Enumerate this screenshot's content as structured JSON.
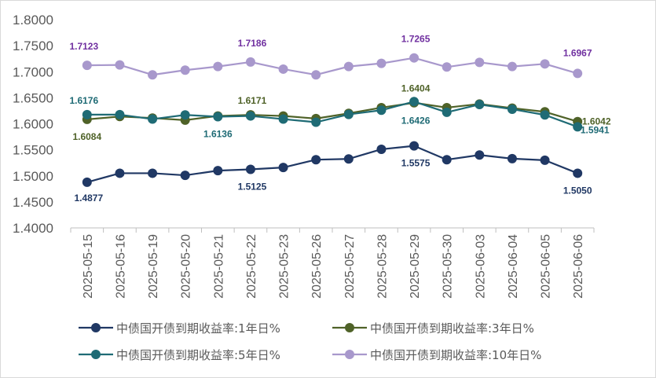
{
  "chart_data": {
    "type": "line",
    "categories": [
      "2025-05-15",
      "2025-05-16",
      "2025-05-19",
      "2025-05-20",
      "2025-05-21",
      "2025-05-22",
      "2025-05-23",
      "2025-05-26",
      "2025-05-27",
      "2025-05-28",
      "2025-05-29",
      "2025-05-30",
      "2025-06-03",
      "2025-06-04",
      "2025-06-05",
      "2025-06-06"
    ],
    "ylim": [
      1.4,
      1.8
    ],
    "yticks": [
      "1.4000",
      "1.4500",
      "1.5000",
      "1.5500",
      "1.6000",
      "1.6500",
      "1.7000",
      "1.7500",
      "1.8000"
    ],
    "grid": false,
    "legend_position": "bottom",
    "series": [
      {
        "name": "中债国开债到期收益率:1年日%",
        "color": "#203864",
        "values": [
          1.4877,
          1.505,
          1.505,
          1.501,
          1.51,
          1.5125,
          1.516,
          1.531,
          1.5325,
          1.551,
          1.5575,
          1.531,
          1.54,
          1.533,
          1.53,
          1.505
        ],
        "labels": [
          {
            "index": 0,
            "text": "1.4877"
          },
          {
            "index": 5,
            "text": "1.5125"
          },
          {
            "index": 10,
            "text": "1.5575"
          },
          {
            "index": 15,
            "text": "1.5050"
          }
        ]
      },
      {
        "name": "中债国开债到期收益率:3年日%",
        "color": "#4F6228",
        "values": [
          1.6084,
          1.614,
          1.611,
          1.607,
          1.615,
          1.6171,
          1.615,
          1.61,
          1.62,
          1.631,
          1.6404,
          1.631,
          1.638,
          1.63,
          1.623,
          1.6042
        ],
        "labels": [
          {
            "index": 0,
            "text": "1.6084"
          },
          {
            "index": 5,
            "text": "1.6171"
          },
          {
            "index": 10,
            "text": "1.6404"
          },
          {
            "index": 15,
            "text": "1.6042"
          }
        ]
      },
      {
        "name": "中债国开债到期收益率:5年日%",
        "color": "#1F6B75",
        "values": [
          1.6176,
          1.6175,
          1.609,
          1.617,
          1.6136,
          1.615,
          1.609,
          1.603,
          1.618,
          1.626,
          1.6426,
          1.622,
          1.637,
          1.628,
          1.617,
          1.5941
        ],
        "labels": [
          {
            "index": 0,
            "text": "1.6176"
          },
          {
            "index": 4,
            "text": "1.6136"
          },
          {
            "index": 10,
            "text": "1.6426"
          },
          {
            "index": 15,
            "text": "1.5941"
          }
        ]
      },
      {
        "name": "中债国开债到期收益率:10年日%",
        "color": "#A898CC",
        "label_color": "#7030A0",
        "values": [
          1.7123,
          1.713,
          1.694,
          1.703,
          1.71,
          1.7186,
          1.705,
          1.694,
          1.71,
          1.716,
          1.7265,
          1.709,
          1.718,
          1.71,
          1.715,
          1.6967
        ],
        "labels": [
          {
            "index": 0,
            "text": "1.7123"
          },
          {
            "index": 5,
            "text": "1.7186"
          },
          {
            "index": 10,
            "text": "1.7265"
          },
          {
            "index": 15,
            "text": "1.6967"
          }
        ]
      }
    ],
    "legend": {
      "items": [
        {
          "series": 0,
          "label": "中债国开债到期收益率:1年日%"
        },
        {
          "series": 1,
          "label": "中债国开债到期收益率:3年日%"
        },
        {
          "series": 2,
          "label": "中债国开债到期收益率:5年日%"
        },
        {
          "series": 3,
          "label": "中债国开债到期收益率:10年日%"
        }
      ]
    }
  }
}
